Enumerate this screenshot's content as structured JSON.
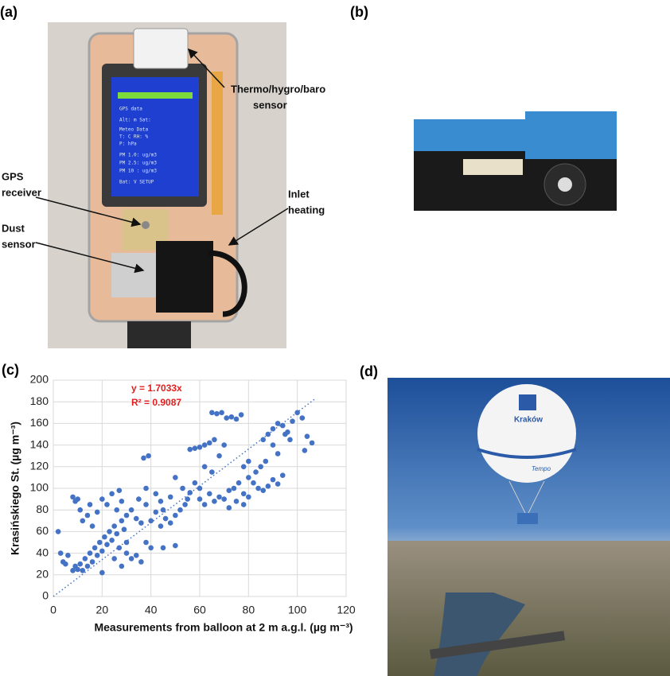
{
  "panels": {
    "a": {
      "label": "(a)",
      "annotations": [
        {
          "lines": [
            "Thermo/hygro/baro",
            "sensor"
          ]
        },
        {
          "lines": [
            "GPS",
            "receiver"
          ]
        },
        {
          "lines": [
            "Inlet",
            "heating"
          ]
        },
        {
          "lines": [
            "Dust",
            "sensor"
          ]
        }
      ],
      "screen": [
        "GPS data",
        "Alt:    m Sat:",
        "Meteo Data",
        "T:   C  RH:   %",
        "P:       hPa",
        "PM 1.0:    ug/m3",
        "PM 2.5:    ug/m3",
        "PM 10 :    ug/m3",
        "Bat:  V  SETUP"
      ]
    },
    "b": {
      "label": "(b)"
    },
    "d": {
      "label": "(d)",
      "balloon_text": [
        "Kraków",
        "Tempo"
      ]
    }
  },
  "chart_data": {
    "type": "scatter",
    "panel_label": "(c)",
    "x_label": "Measurements from balloon at 2 m a.g.l. (µg m⁻³)",
    "y_label": "Krasińskiego St. (µg m⁻³)",
    "color": "#4472c4",
    "x": [
      2,
      3,
      4,
      5,
      6,
      8,
      9,
      10,
      11,
      12,
      13,
      14,
      15,
      16,
      17,
      18,
      19,
      20,
      21,
      22,
      23,
      24,
      25,
      26,
      27,
      28,
      29,
      30,
      8,
      9,
      10,
      11,
      12,
      14,
      15,
      16,
      18,
      20,
      22,
      24,
      26,
      27,
      28,
      30,
      32,
      34,
      35,
      36,
      38,
      40,
      42,
      44,
      45,
      46,
      48,
      50,
      52,
      55,
      30,
      32,
      34,
      36,
      38,
      40,
      45,
      50,
      20,
      25,
      28,
      37,
      39,
      38,
      42,
      44,
      48,
      50,
      53,
      56,
      58,
      60,
      62,
      64,
      66,
      68,
      70,
      62,
      65,
      60,
      62,
      64,
      66,
      68,
      70,
      72,
      74,
      76,
      78,
      80,
      82,
      84,
      86,
      88,
      90,
      92,
      94,
      72,
      75,
      78,
      80,
      83,
      87,
      65,
      67,
      69,
      71,
      73,
      75,
      77,
      86,
      88,
      90,
      92,
      94,
      96,
      98,
      100,
      102,
      104,
      106,
      103,
      90,
      92,
      58,
      60,
      56,
      54,
      85,
      80,
      78,
      95,
      97
    ],
    "y": [
      60,
      40,
      32,
      30,
      38,
      24,
      28,
      25,
      30,
      24,
      35,
      28,
      40,
      32,
      45,
      38,
      50,
      42,
      55,
      48,
      60,
      52,
      65,
      58,
      45,
      70,
      62,
      50,
      92,
      88,
      90,
      80,
      70,
      75,
      85,
      65,
      78,
      90,
      85,
      95,
      80,
      98,
      88,
      75,
      80,
      72,
      90,
      68,
      85,
      70,
      78,
      65,
      80,
      72,
      68,
      75,
      80,
      90,
      40,
      35,
      38,
      32,
      50,
      45,
      45,
      47,
      22,
      35,
      28,
      128,
      130,
      100,
      95,
      88,
      92,
      110,
      100,
      136,
      137,
      138,
      140,
      142,
      145,
      130,
      140,
      120,
      115,
      90,
      85,
      95,
      88,
      92,
      90,
      98,
      100,
      105,
      95,
      110,
      105,
      100,
      98,
      102,
      108,
      104,
      112,
      82,
      88,
      85,
      92,
      115,
      125,
      170,
      169,
      170,
      165,
      166,
      164,
      168,
      145,
      150,
      155,
      160,
      158,
      152,
      162,
      170,
      165,
      148,
      142,
      135,
      140,
      132,
      105,
      100,
      96,
      85,
      120,
      125,
      120,
      150,
      145
    ],
    "trendline": {
      "label": "y = 1.7033x",
      "slope": 1.7033,
      "x_range": [
        0,
        107
      ],
      "r2_label": "R² = 0.9087",
      "r2": 0.9087
    },
    "xlim": [
      0,
      120
    ],
    "xticks": [
      0,
      20,
      40,
      60,
      80,
      100,
      120
    ],
    "ylim": [
      0,
      200
    ],
    "yticks": [
      0,
      20,
      40,
      60,
      80,
      100,
      120,
      140,
      160,
      180,
      200
    ],
    "grid": true
  }
}
